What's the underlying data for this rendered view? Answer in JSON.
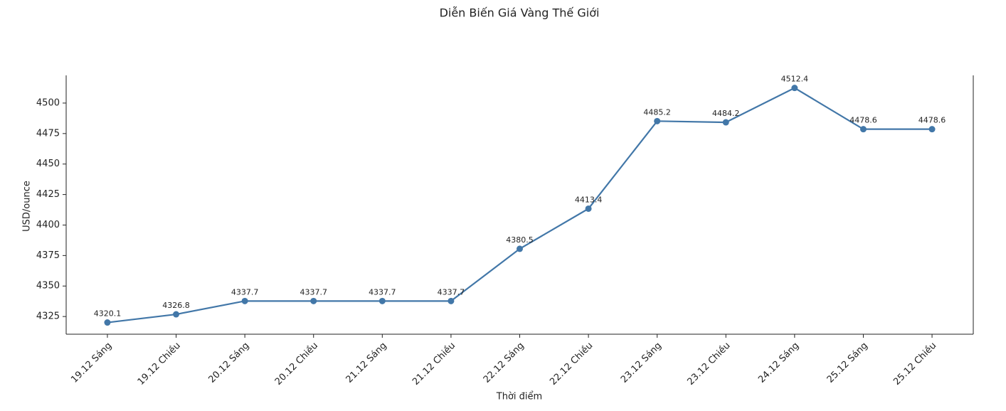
{
  "chart_data": {
    "type": "line",
    "title": "Diễn Biến Giá Vàng Thế Giới",
    "x_label": "Thời điểm",
    "y_label": "USD/ounce",
    "categories": [
      "19.12 Sáng",
      "19.12 Chiều",
      "20.12 Sáng",
      "20.12 Chiều",
      "21.12 Sáng",
      "21.12 Chiều",
      "22.12 Sáng",
      "22.12 Chiều",
      "23.12 Sáng",
      "23.12 Chiều",
      "24.12 Sáng",
      "25.12 Sáng",
      "25.12 Chiều"
    ],
    "values": [
      4320.1,
      4326.8,
      4337.7,
      4337.7,
      4337.7,
      4337.7,
      4380.5,
      4413.4,
      4485.2,
      4484.2,
      4512.4,
      4478.6,
      4478.6
    ],
    "color": "#4277a8",
    "ylim": [
      4310.5,
      4522.7
    ],
    "yticks": [
      4325,
      4350,
      4375,
      4400,
      4425,
      4450,
      4475,
      4500
    ],
    "grid": false
  }
}
